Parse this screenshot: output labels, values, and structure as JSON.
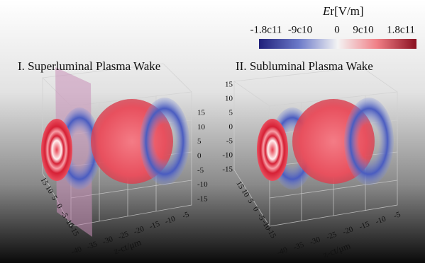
{
  "colorbar": {
    "title_symbol": "E",
    "title_rest": "r[V/m]",
    "ticks": [
      "-1.8c11",
      "-9c10",
      "0",
      "9c10",
      "1.8c11"
    ]
  },
  "panels": [
    {
      "title": "I. Superluminal Plasma Wake",
      "vertical_ticks": [
        "15",
        "10",
        "5",
        "0",
        "-5",
        "-10",
        "-15"
      ],
      "depth_ticks": [
        "15",
        "10",
        "5",
        "0",
        "-5",
        "-10",
        "-15"
      ],
      "z_ticks": [
        "-40",
        "-35",
        "-30",
        "-25",
        "-20",
        "-15",
        "-10",
        "-5"
      ],
      "z_label": "z-ct/μm"
    },
    {
      "title": "II. Subluminal Plasma Wake",
      "vertical_ticks": [
        "15",
        "10",
        "5",
        "0",
        "-5",
        "-10",
        "-15"
      ],
      "depth_ticks": [
        "15",
        "10",
        "5",
        "0",
        "-5",
        "-10",
        "-15"
      ],
      "z_ticks": [
        "-40",
        "-35",
        "-30",
        "-25",
        "-20",
        "-15",
        "-10",
        "-5"
      ],
      "z_label": "z-ct/μm"
    }
  ]
}
